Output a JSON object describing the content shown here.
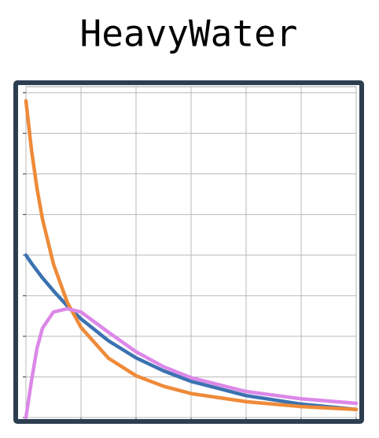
{
  "chart_data": {
    "type": "line",
    "title": "HeavyWater",
    "x": [
      0,
      0.1,
      0.2,
      0.3,
      0.5,
      0.75,
      1,
      1.5,
      2,
      2.5,
      3,
      4,
      5,
      6
    ],
    "series": [
      {
        "color": "#3b72b1",
        "values": [
          4,
          3.8,
          3.62,
          3.44,
          3.12,
          2.75,
          2.43,
          1.89,
          1.47,
          1.15,
          0.89,
          0.54,
          0.33,
          0.2
        ]
      },
      {
        "color": "#ee8a38",
        "values": [
          7.8,
          6.6,
          5.65,
          4.89,
          3.78,
          2.84,
          2.22,
          1.46,
          1.03,
          0.77,
          0.59,
          0.39,
          0.27,
          0.2
        ]
      },
      {
        "color": "#dc88e8",
        "values": [
          0,
          0.9,
          1.7,
          2.2,
          2.6,
          2.68,
          2.6,
          2.1,
          1.62,
          1.25,
          0.98,
          0.64,
          0.46,
          0.35
        ]
      }
    ],
    "xlim": [
      0,
      6
    ],
    "xticks": [
      0,
      1,
      2,
      3,
      4,
      5,
      6
    ],
    "ylim": [
      0,
      8.15
    ],
    "yticks": [
      0,
      1,
      2,
      3,
      4,
      5,
      6,
      7,
      8
    ],
    "grid": true
  }
}
